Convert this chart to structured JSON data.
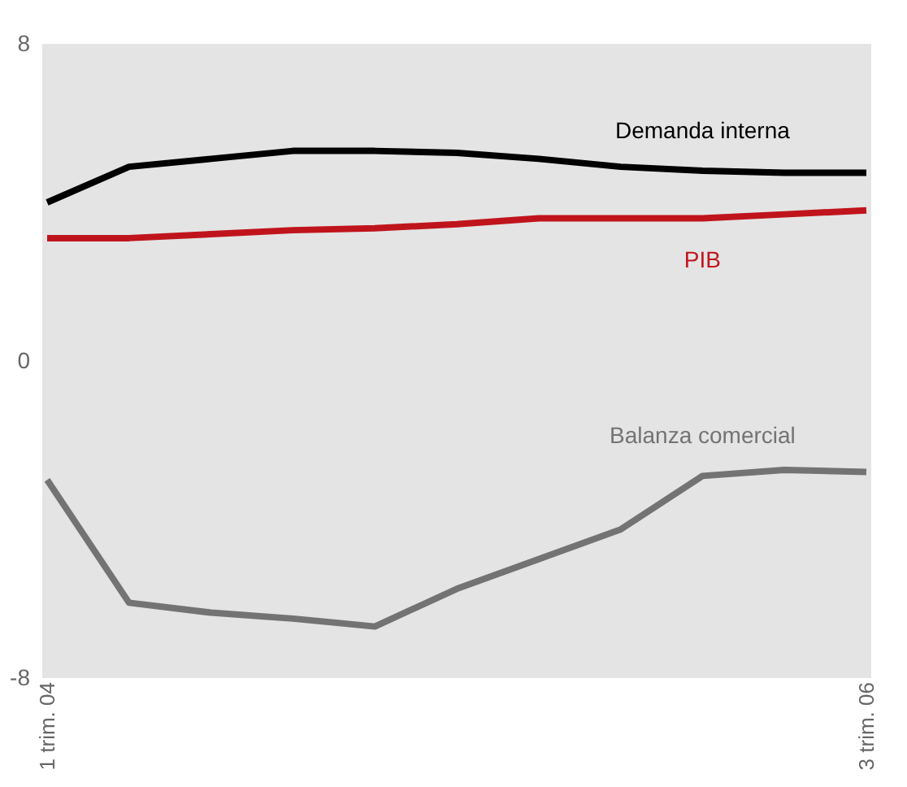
{
  "chart_data": {
    "type": "line",
    "categories": [
      "1 trim. 04",
      null,
      null,
      null,
      null,
      null,
      null,
      null,
      null,
      null,
      "3 trim. 06"
    ],
    "series": [
      {
        "name": "Demanda interna",
        "color": "#000000",
        "values": [
          4.0,
          4.9,
          5.1,
          5.3,
          5.3,
          5.25,
          5.1,
          4.9,
          4.8,
          4.75,
          4.75
        ]
      },
      {
        "name": "PIB",
        "color": "#c0141c",
        "values": [
          3.1,
          3.1,
          3.2,
          3.3,
          3.35,
          3.45,
          3.6,
          3.6,
          3.6,
          3.7,
          3.8
        ]
      },
      {
        "name": "Balanza comercial",
        "color": "#737373",
        "values": [
          -3.0,
          -6.1,
          -6.35,
          -6.5,
          -6.7,
          -5.75,
          -5.0,
          -4.25,
          -2.9,
          -2.75,
          -2.8
        ]
      }
    ],
    "ylim": [
      -8,
      8
    ],
    "yticks": [
      -8,
      0,
      8
    ],
    "grid": false,
    "marker": "none",
    "line_style": "solid"
  }
}
